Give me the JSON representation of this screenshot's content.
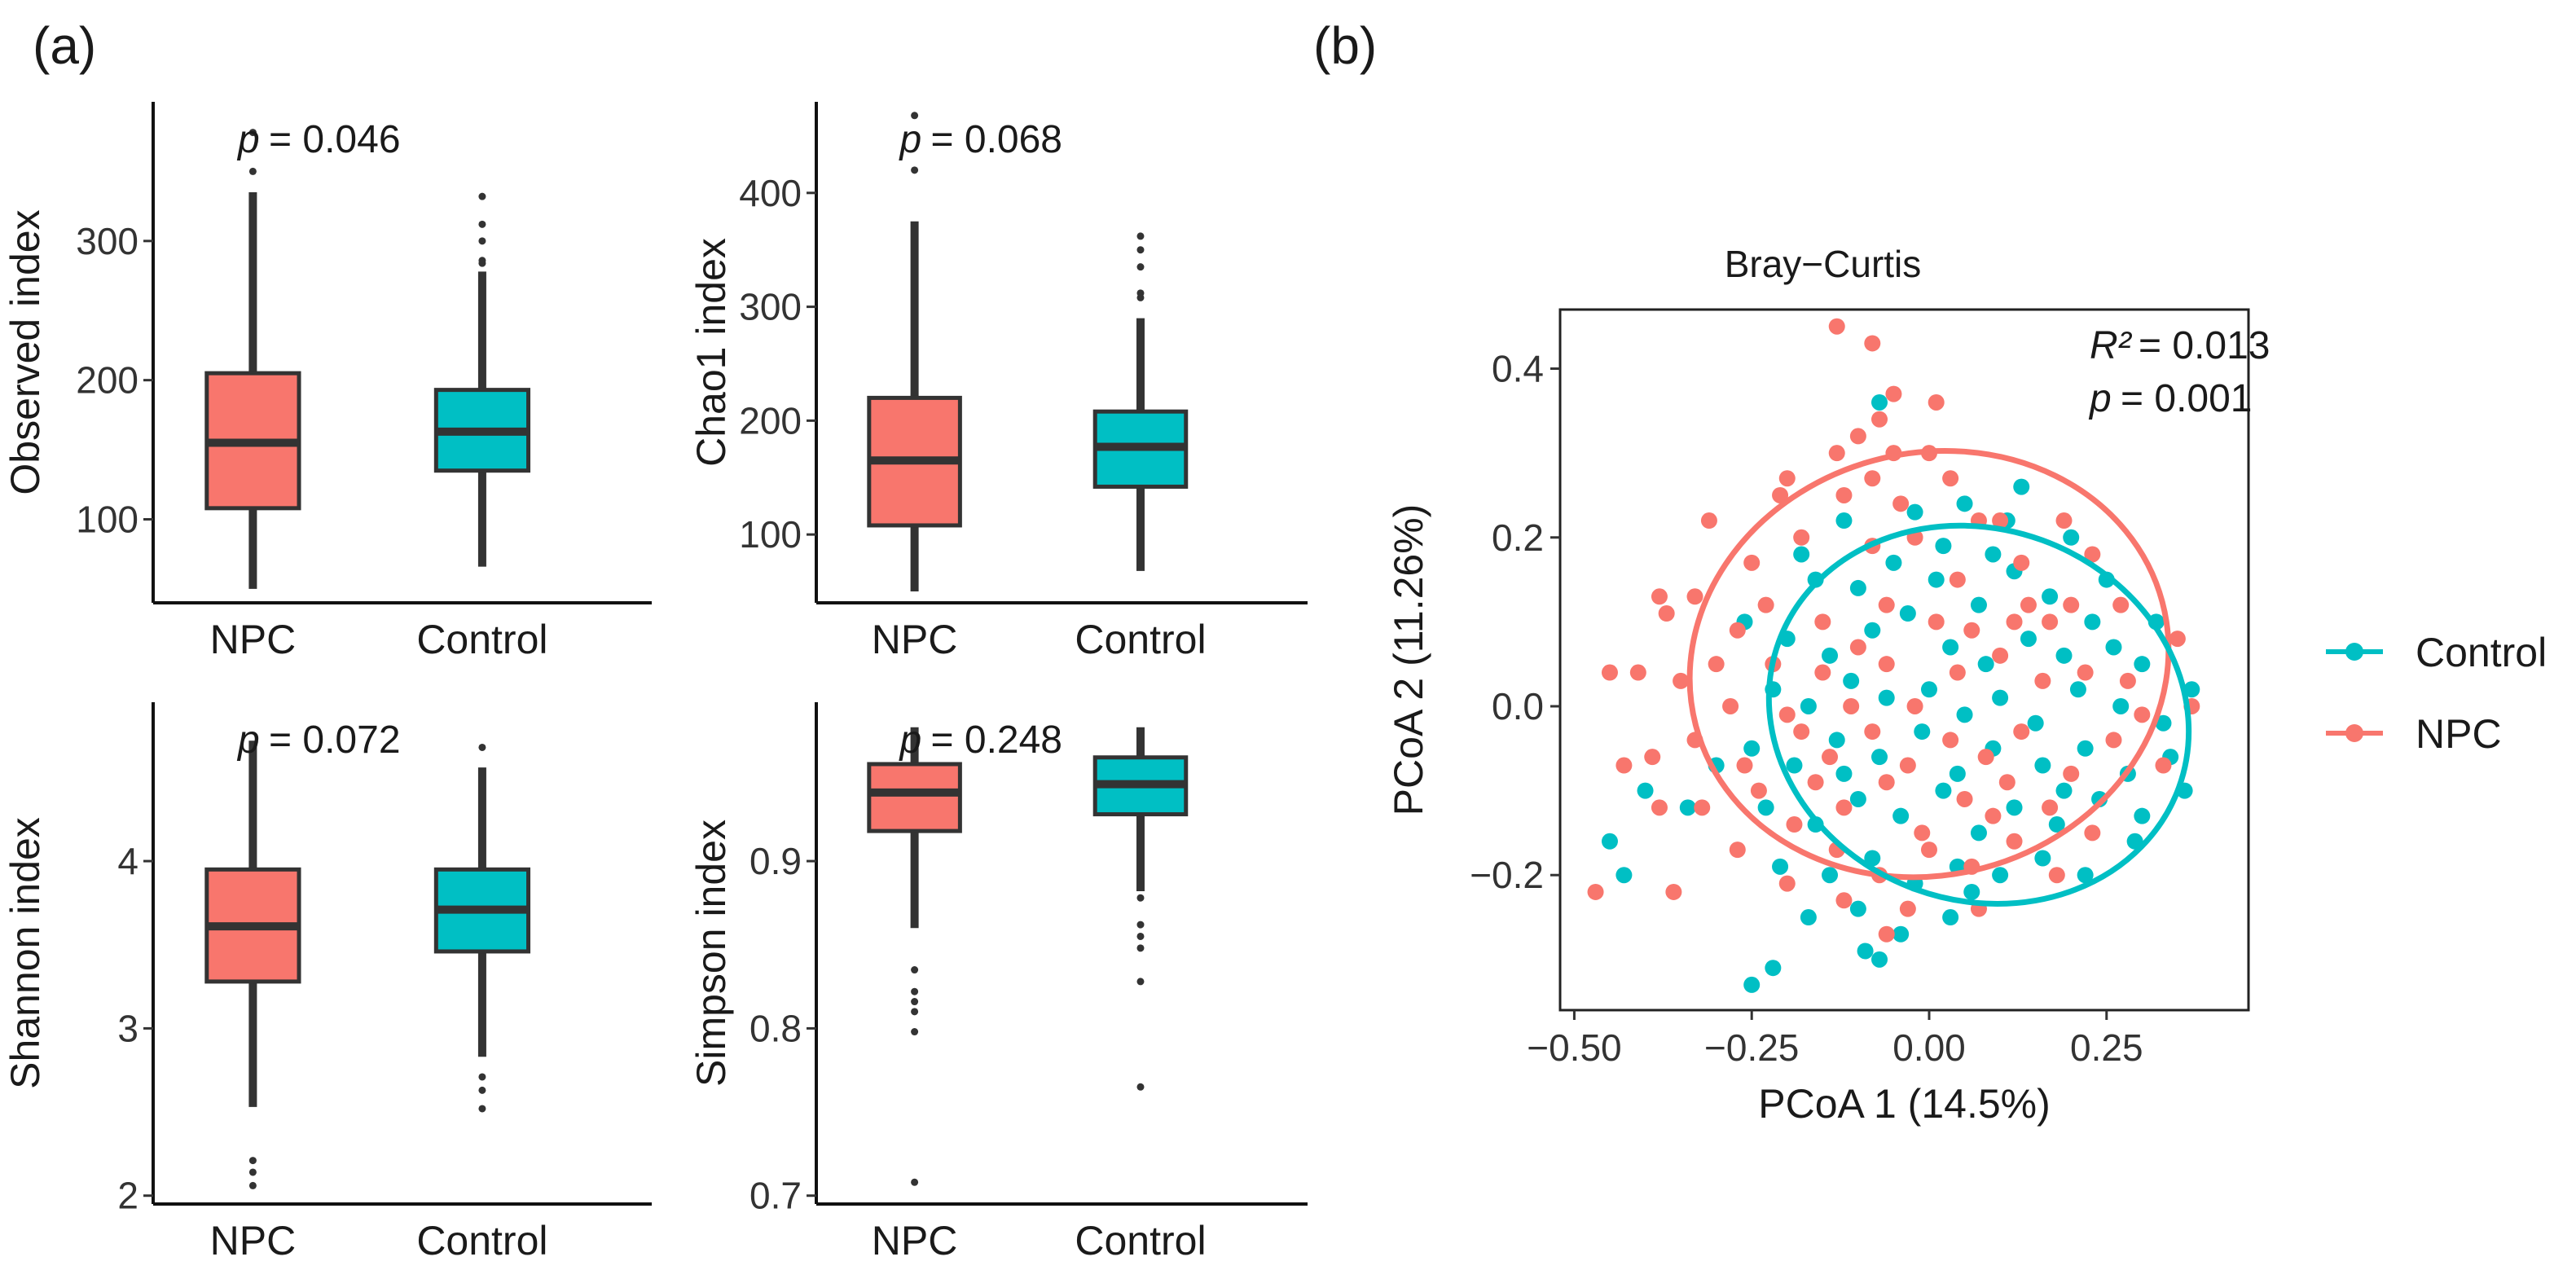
{
  "panels": {
    "a_label": "(a)",
    "b_label": "(b)"
  },
  "colors": {
    "npc": "#F8766D",
    "control": "#00BFC4",
    "ink": "#333333"
  },
  "chart_data": [
    {
      "type": "box",
      "ylabel": "Observed index",
      "categories": [
        "NPC",
        "Control"
      ],
      "yticks": [
        100,
        200,
        300
      ],
      "ylim": [
        40,
        400
      ],
      "p_label": "p",
      "p_value": "= 0.046",
      "boxes": [
        {
          "name": "NPC",
          "q1": 108,
          "median": 155,
          "q3": 205,
          "whisker_low": 50,
          "whisker_high": 335,
          "outliers": [
            350,
            378
          ]
        },
        {
          "name": "Control",
          "q1": 135,
          "median": 163,
          "q3": 193,
          "whisker_low": 66,
          "whisker_high": 278,
          "outliers": [
            284,
            286,
            300,
            312,
            332
          ]
        }
      ]
    },
    {
      "type": "box",
      "ylabel": "Chao1 index",
      "categories": [
        "NPC",
        "Control"
      ],
      "yticks": [
        100,
        200,
        300,
        400
      ],
      "ylim": [
        40,
        480
      ],
      "p_label": "p",
      "p_value": "= 0.068",
      "boxes": [
        {
          "name": "NPC",
          "q1": 108,
          "median": 165,
          "q3": 220,
          "whisker_low": 50,
          "whisker_high": 375,
          "outliers": [
            420,
            468
          ]
        },
        {
          "name": "Control",
          "q1": 142,
          "median": 177,
          "q3": 208,
          "whisker_low": 68,
          "whisker_high": 290,
          "outliers": [
            308,
            312,
            335,
            350,
            362
          ]
        }
      ]
    },
    {
      "type": "box",
      "ylabel": "Shannon index",
      "categories": [
        "NPC",
        "Control"
      ],
      "yticks": [
        2,
        3,
        4
      ],
      "ylim": [
        1.95,
        4.95
      ],
      "p_label": "p",
      "p_value": "= 0.072",
      "boxes": [
        {
          "name": "NPC",
          "q1": 3.28,
          "median": 3.61,
          "q3": 3.95,
          "whisker_low": 2.53,
          "whisker_high": 4.72,
          "outliers": [
            2.06,
            2.14,
            2.21
          ]
        },
        {
          "name": "Control",
          "q1": 3.46,
          "median": 3.71,
          "q3": 3.95,
          "whisker_low": 2.83,
          "whisker_high": 4.56,
          "outliers": [
            2.52,
            2.63,
            2.71,
            4.68
          ]
        }
      ]
    },
    {
      "type": "box",
      "ylabel": "Simpson index",
      "categories": [
        "NPC",
        "Control"
      ],
      "yticks": [
        0.7,
        0.8,
        0.9
      ],
      "ylim": [
        0.695,
        0.995
      ],
      "p_label": "p",
      "p_value": "= 0.248",
      "boxes": [
        {
          "name": "NPC",
          "q1": 0.918,
          "median": 0.941,
          "q3": 0.958,
          "whisker_low": 0.86,
          "whisker_high": 0.98,
          "outliers": [
            0.708,
            0.798,
            0.81,
            0.816,
            0.822,
            0.835
          ]
        },
        {
          "name": "Control",
          "q1": 0.928,
          "median": 0.946,
          "q3": 0.962,
          "whisker_low": 0.882,
          "whisker_high": 0.98,
          "outliers": [
            0.765,
            0.828,
            0.848,
            0.855,
            0.862,
            0.878
          ]
        }
      ]
    },
    {
      "type": "scatter",
      "title": "Bray−Curtis",
      "xlabel": "PCoA 1 (14.5%)",
      "ylabel": "PCoA 2 (11.26%)",
      "xlim": [
        -0.52,
        0.45
      ],
      "ylim": [
        -0.36,
        0.47
      ],
      "xticks": [
        -0.5,
        -0.25,
        0.0,
        0.25
      ],
      "xtick_labels": [
        "−0.50",
        "−0.25",
        "0.00",
        "0.25"
      ],
      "yticks": [
        -0.2,
        0.0,
        0.2,
        0.4
      ],
      "ytick_labels": [
        "−0.2",
        "0.0",
        "0.2",
        "0.4"
      ],
      "r2_label": "R²",
      "r2_value": "= 0.013",
      "p_label": "p",
      "p_value": "= 0.001",
      "legend": [
        {
          "name": "Control",
          "color": "#00BFC4"
        },
        {
          "name": "NPC",
          "color": "#F8766D"
        }
      ],
      "ellipses": [
        {
          "name": "NPC",
          "cx": 0.0,
          "cy": 0.05,
          "rx": 0.34,
          "ry": 0.25,
          "angle_deg": -15
        },
        {
          "name": "Control",
          "cx": 0.07,
          "cy": -0.01,
          "rx": 0.3,
          "ry": 0.22,
          "angle_deg": 20
        }
      ],
      "series": [
        {
          "name": "Control",
          "points": [
            [
              -0.07,
              0.36
            ],
            [
              -0.12,
              0.22
            ],
            [
              -0.02,
              0.23
            ],
            [
              0.05,
              0.24
            ],
            [
              0.09,
              0.18
            ],
            [
              0.13,
              0.26
            ],
            [
              0.2,
              0.2
            ],
            [
              -0.16,
              0.15
            ],
            [
              -0.1,
              0.14
            ],
            [
              -0.05,
              0.17
            ],
            [
              0.02,
              0.19
            ],
            [
              0.07,
              0.12
            ],
            [
              0.12,
              0.16
            ],
            [
              0.17,
              0.13
            ],
            [
              0.23,
              0.1
            ],
            [
              -0.2,
              0.08
            ],
            [
              -0.14,
              0.06
            ],
            [
              -0.08,
              0.09
            ],
            [
              -0.03,
              0.11
            ],
            [
              0.03,
              0.07
            ],
            [
              0.08,
              0.05
            ],
            [
              0.14,
              0.08
            ],
            [
              0.19,
              0.06
            ],
            [
              0.26,
              0.07
            ],
            [
              0.3,
              0.05
            ],
            [
              -0.22,
              0.02
            ],
            [
              -0.17,
              0.0
            ],
            [
              -0.11,
              0.03
            ],
            [
              -0.06,
              0.01
            ],
            [
              0.0,
              0.02
            ],
            [
              0.05,
              -0.01
            ],
            [
              0.1,
              0.01
            ],
            [
              0.15,
              -0.02
            ],
            [
              0.21,
              0.02
            ],
            [
              0.27,
              0.0
            ],
            [
              0.33,
              -0.02
            ],
            [
              -0.25,
              -0.05
            ],
            [
              -0.19,
              -0.07
            ],
            [
              -0.13,
              -0.04
            ],
            [
              -0.07,
              -0.06
            ],
            [
              -0.01,
              -0.03
            ],
            [
              0.04,
              -0.08
            ],
            [
              0.09,
              -0.05
            ],
            [
              0.16,
              -0.07
            ],
            [
              0.22,
              -0.05
            ],
            [
              0.28,
              -0.08
            ],
            [
              0.34,
              -0.06
            ],
            [
              -0.23,
              -0.12
            ],
            [
              -0.16,
              -0.14
            ],
            [
              -0.1,
              -0.11
            ],
            [
              -0.04,
              -0.13
            ],
            [
              0.02,
              -0.1
            ],
            [
              0.07,
              -0.15
            ],
            [
              0.12,
              -0.12
            ],
            [
              0.18,
              -0.14
            ],
            [
              0.24,
              -0.11
            ],
            [
              0.3,
              -0.13
            ],
            [
              -0.21,
              -0.19
            ],
            [
              -0.14,
              -0.2
            ],
            [
              -0.08,
              -0.18
            ],
            [
              -0.02,
              -0.21
            ],
            [
              0.04,
              -0.19
            ],
            [
              0.1,
              -0.2
            ],
            [
              0.16,
              -0.18
            ],
            [
              0.22,
              -0.2
            ],
            [
              -0.17,
              -0.25
            ],
            [
              -0.1,
              -0.24
            ],
            [
              -0.04,
              -0.27
            ],
            [
              0.03,
              -0.25
            ],
            [
              -0.07,
              -0.3
            ],
            [
              -0.09,
              -0.29
            ],
            [
              -0.25,
              -0.33
            ],
            [
              -0.22,
              -0.31
            ],
            [
              -0.45,
              -0.16
            ],
            [
              -0.43,
              -0.2
            ],
            [
              -0.4,
              -0.1
            ],
            [
              -0.34,
              -0.12
            ],
            [
              -0.3,
              -0.07
            ],
            [
              0.36,
              -0.1
            ],
            [
              0.37,
              0.02
            ],
            [
              0.32,
              0.1
            ],
            [
              0.29,
              -0.16
            ],
            [
              0.25,
              0.15
            ],
            [
              -0.18,
              0.18
            ],
            [
              -0.26,
              0.1
            ],
            [
              0.01,
              0.15
            ],
            [
              0.11,
              0.22
            ],
            [
              0.06,
              -0.22
            ],
            [
              -0.12,
              -0.08
            ],
            [
              0.19,
              -0.1
            ]
          ]
        },
        {
          "name": "NPC",
          "points": [
            [
              -0.13,
              0.45
            ],
            [
              -0.08,
              0.43
            ],
            [
              -0.07,
              0.34
            ],
            [
              0.01,
              0.36
            ],
            [
              -0.05,
              0.37
            ],
            [
              -0.1,
              0.32
            ],
            [
              -0.13,
              0.3
            ],
            [
              -0.05,
              0.3
            ],
            [
              -0.08,
              0.27
            ],
            [
              -0.12,
              0.25
            ],
            [
              -0.04,
              0.24
            ],
            [
              0.03,
              0.27
            ],
            [
              0.1,
              0.22
            ],
            [
              0.19,
              0.22
            ],
            [
              -0.21,
              0.25
            ],
            [
              -0.18,
              0.2
            ],
            [
              -0.25,
              0.17
            ],
            [
              -0.31,
              0.22
            ],
            [
              -0.2,
              0.27
            ],
            [
              -0.08,
              0.19
            ],
            [
              -0.02,
              0.2
            ],
            [
              0.04,
              0.15
            ],
            [
              0.07,
              0.22
            ],
            [
              0.13,
              0.17
            ],
            [
              0.17,
              0.1
            ],
            [
              -0.38,
              0.13
            ],
            [
              -0.37,
              0.11
            ],
            [
              -0.33,
              0.13
            ],
            [
              -0.3,
              0.05
            ],
            [
              -0.27,
              0.09
            ],
            [
              -0.22,
              0.05
            ],
            [
              -0.15,
              0.1
            ],
            [
              -0.1,
              0.07
            ],
            [
              -0.06,
              0.12
            ],
            [
              0.01,
              0.1
            ],
            [
              0.06,
              0.09
            ],
            [
              0.12,
              0.1
            ],
            [
              0.2,
              0.12
            ],
            [
              -0.41,
              0.04
            ],
            [
              -0.35,
              0.03
            ],
            [
              -0.28,
              0.0
            ],
            [
              -0.2,
              -0.01
            ],
            [
              -0.15,
              0.04
            ],
            [
              -0.11,
              0.0
            ],
            [
              -0.06,
              0.05
            ],
            [
              -0.02,
              0.0
            ],
            [
              0.04,
              0.04
            ],
            [
              0.1,
              0.06
            ],
            [
              0.16,
              0.03
            ],
            [
              0.22,
              0.04
            ],
            [
              0.28,
              0.03
            ],
            [
              -0.39,
              -0.06
            ],
            [
              -0.33,
              -0.04
            ],
            [
              -0.26,
              -0.07
            ],
            [
              -0.18,
              -0.03
            ],
            [
              -0.14,
              -0.06
            ],
            [
              -0.08,
              -0.03
            ],
            [
              -0.03,
              -0.07
            ],
            [
              0.03,
              -0.04
            ],
            [
              0.08,
              -0.06
            ],
            [
              0.13,
              -0.03
            ],
            [
              0.2,
              -0.08
            ],
            [
              0.26,
              -0.04
            ],
            [
              0.33,
              -0.07
            ],
            [
              -0.32,
              -0.12
            ],
            [
              -0.24,
              -0.1
            ],
            [
              -0.19,
              -0.14
            ],
            [
              -0.12,
              -0.12
            ],
            [
              -0.06,
              -0.09
            ],
            [
              -0.01,
              -0.15
            ],
            [
              0.05,
              -0.11
            ],
            [
              0.11,
              -0.09
            ],
            [
              0.17,
              -0.12
            ],
            [
              0.23,
              -0.15
            ],
            [
              -0.27,
              -0.17
            ],
            [
              -0.2,
              -0.21
            ],
            [
              -0.13,
              -0.17
            ],
            [
              -0.07,
              -0.2
            ],
            [
              0.0,
              -0.17
            ],
            [
              0.06,
              -0.19
            ],
            [
              0.12,
              -0.16
            ],
            [
              0.18,
              -0.2
            ],
            [
              -0.12,
              -0.23
            ],
            [
              -0.03,
              -0.24
            ],
            [
              0.07,
              -0.24
            ],
            [
              -0.06,
              -0.27
            ],
            [
              -0.47,
              -0.22
            ],
            [
              -0.43,
              -0.07
            ],
            [
              -0.38,
              -0.12
            ],
            [
              -0.36,
              -0.22
            ],
            [
              -0.45,
              0.04
            ],
            [
              0.37,
              0.0
            ],
            [
              0.35,
              0.08
            ],
            [
              0.3,
              -0.01
            ],
            [
              0.27,
              0.12
            ],
            [
              0.23,
              0.18
            ],
            [
              0.14,
              0.12
            ],
            [
              -0.16,
              -0.09
            ],
            [
              0.09,
              -0.13
            ],
            [
              -0.23,
              0.12
            ],
            [
              0.0,
              0.3
            ]
          ]
        }
      ]
    }
  ]
}
